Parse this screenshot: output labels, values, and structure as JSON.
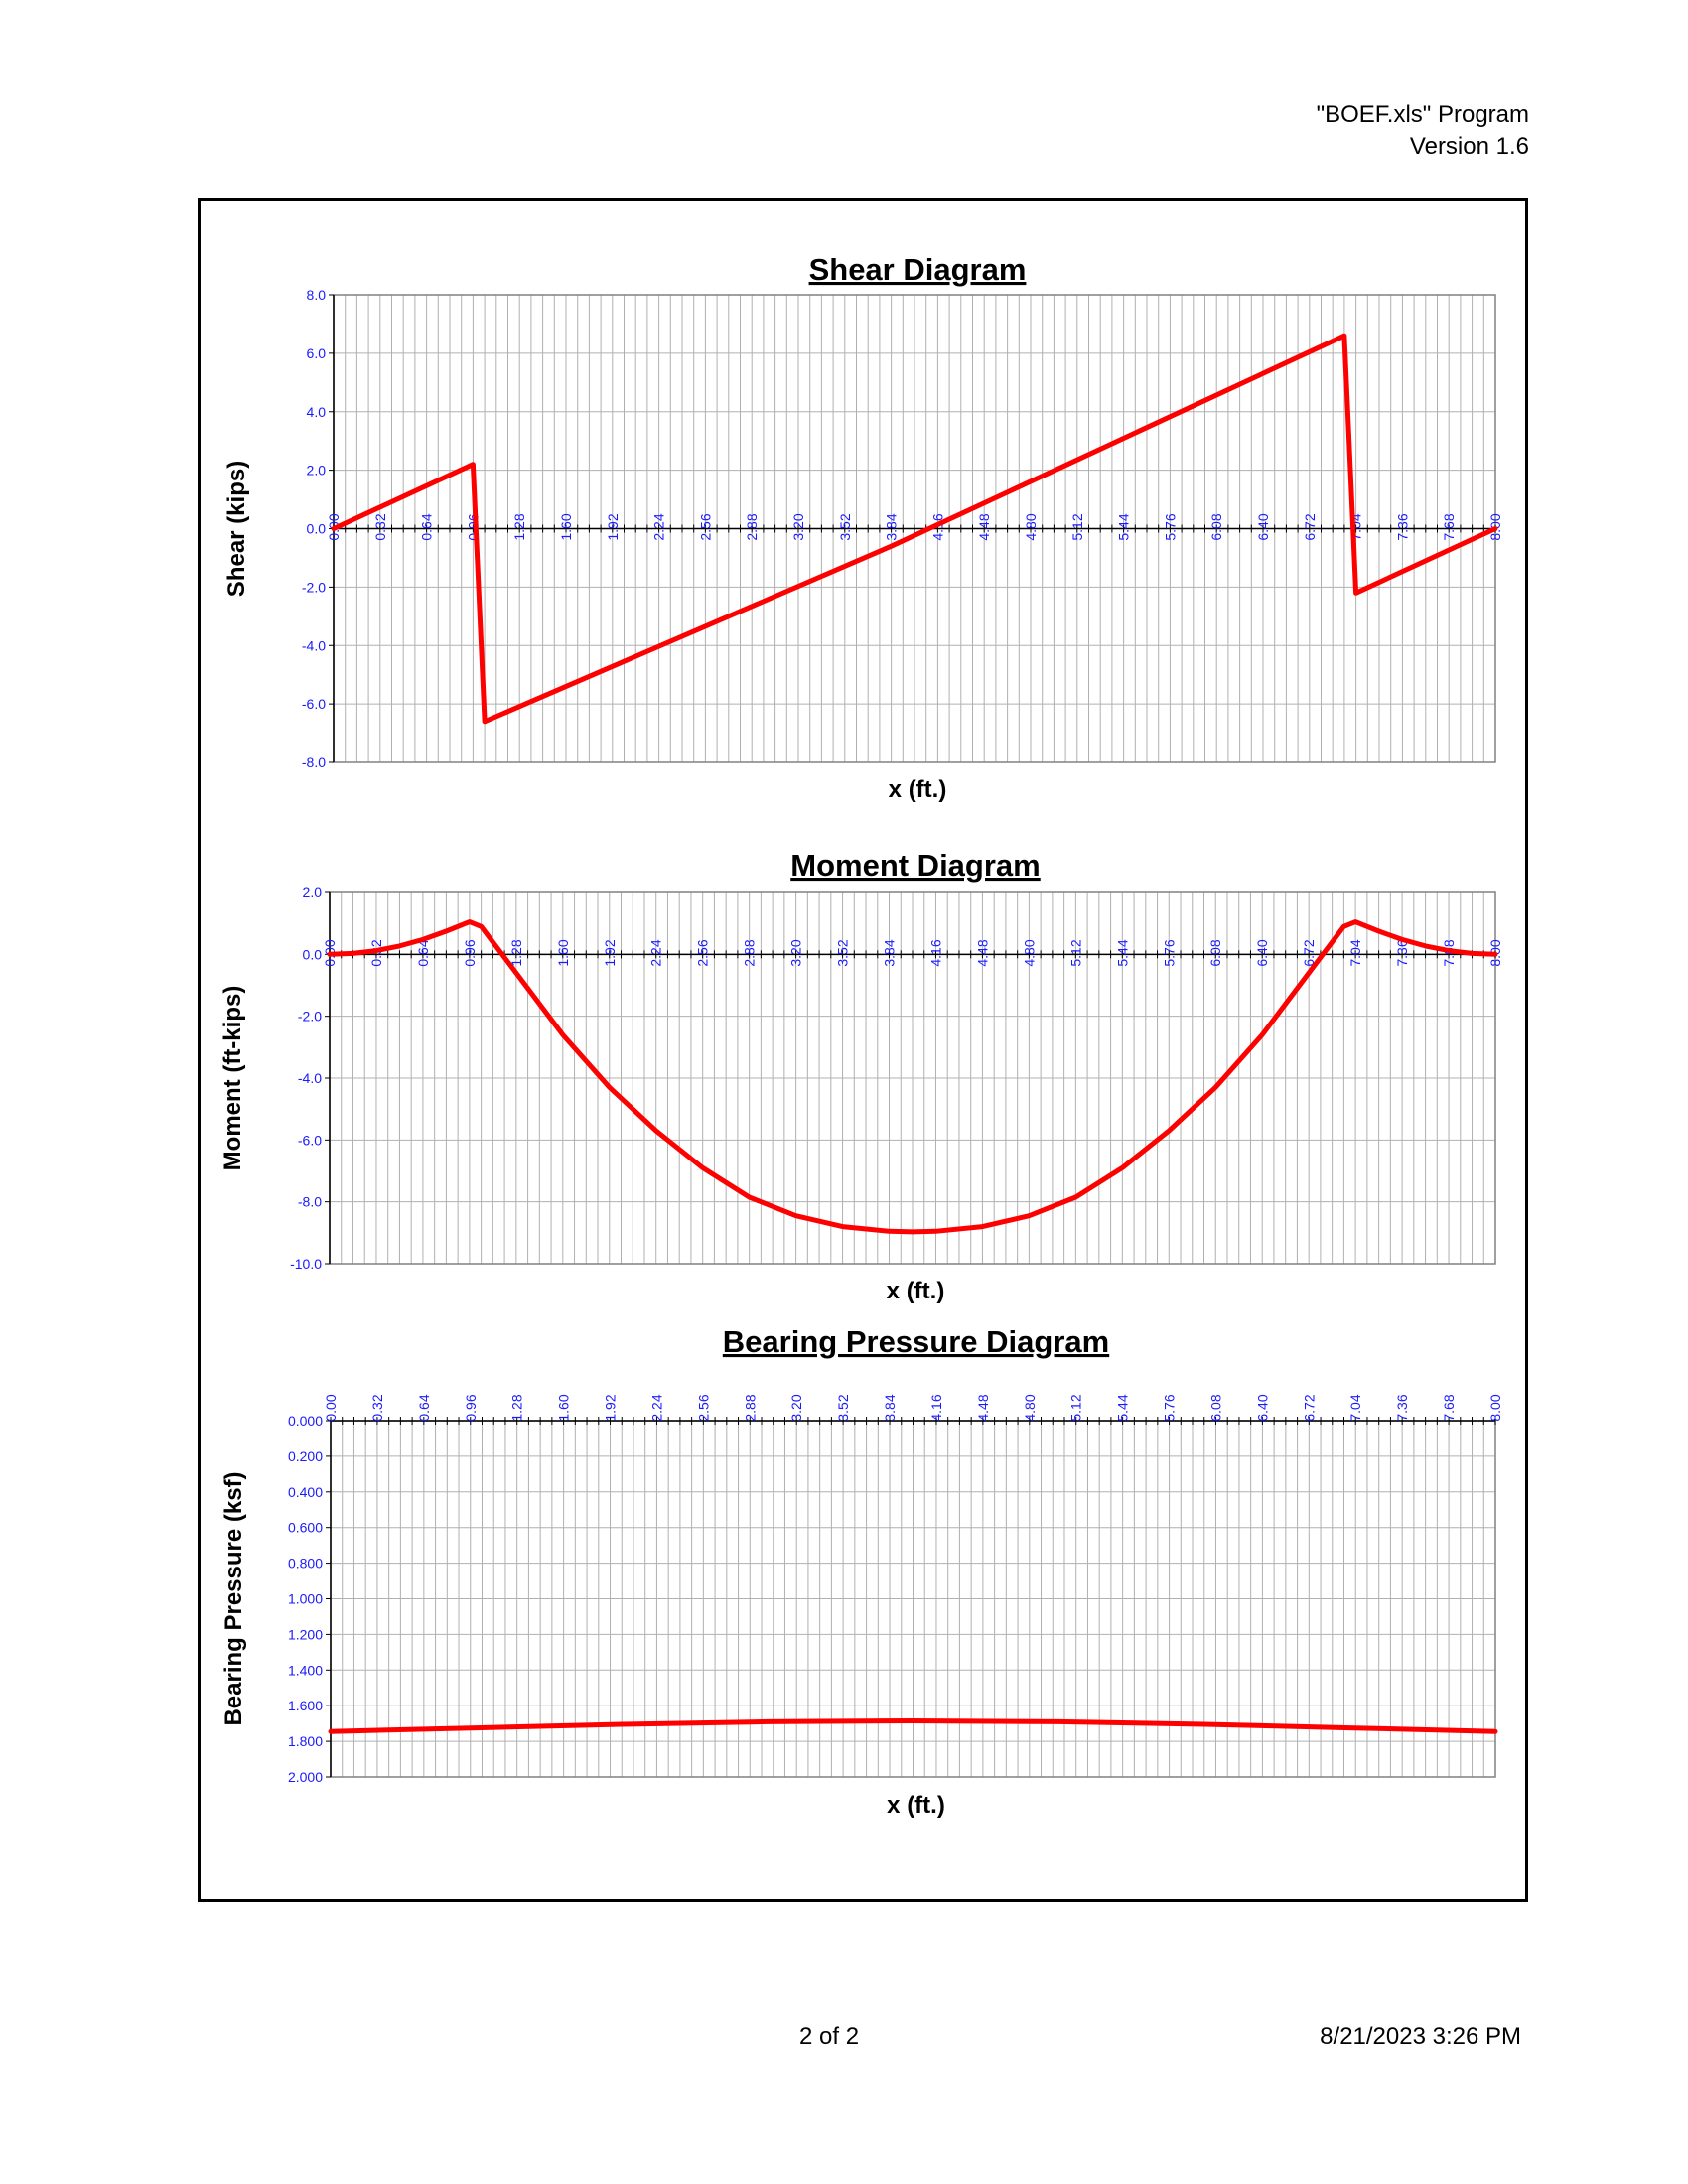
{
  "header": {
    "program": "\"BOEF.xls\" Program",
    "version": "Version 1.6"
  },
  "footer": {
    "page": "2 of 2",
    "datetime": "8/21/2023  3:26 PM"
  },
  "colors": {
    "series": "#ff0000",
    "tick_labels": "#1a1aff",
    "grid": "#b0b0b0"
  },
  "chart_data": [
    {
      "type": "line",
      "title": "Shear Diagram",
      "xlabel": "x (ft.)",
      "ylabel": "Shear (kips)",
      "xlim": [
        0,
        8
      ],
      "ylim": [
        -8,
        8
      ],
      "yticks": [
        "8.0",
        "6.0",
        "4.0",
        "2.0",
        "0.0",
        "-2.0",
        "-4.0",
        "-6.0",
        "-8.0"
      ],
      "xticks": [
        "0.00",
        "0.32",
        "0.64",
        "0.96",
        "1.28",
        "1.60",
        "1.92",
        "2.24",
        "2.56",
        "2.88",
        "3.20",
        "3.52",
        "3.84",
        "4.16",
        "4.48",
        "4.80",
        "5.12",
        "5.44",
        "5.76",
        "6.08",
        "6.40",
        "6.72",
        "7.04",
        "7.36",
        "7.68",
        "8.00"
      ],
      "grid": true,
      "series": [
        {
          "x": [
            0,
            0.96,
            1.04,
            3.84,
            6.96,
            7.04,
            8.0
          ],
          "y": [
            0,
            2.2,
            -6.6,
            -0.6,
            6.6,
            -2.2,
            0
          ]
        }
      ]
    },
    {
      "type": "line",
      "title": "Moment Diagram",
      "xlabel": "x (ft.)",
      "ylabel": "Moment (ft-kips)",
      "xlim": [
        0,
        8
      ],
      "ylim": [
        -10,
        2
      ],
      "yticks": [
        "2.0",
        "0.0",
        "-2.0",
        "-4.0",
        "-6.0",
        "-8.0",
        "-10.0"
      ],
      "xticks": [
        "0.00",
        "0.32",
        "0.64",
        "0.96",
        "1.28",
        "1.60",
        "1.92",
        "2.24",
        "2.56",
        "2.88",
        "3.20",
        "3.52",
        "3.84",
        "4.16",
        "4.48",
        "4.80",
        "5.12",
        "5.44",
        "5.76",
        "6.08",
        "6.40",
        "6.72",
        "7.04",
        "7.36",
        "7.68",
        "8.00"
      ],
      "grid": true,
      "series": [
        {
          "x": [
            0,
            0.16,
            0.32,
            0.48,
            0.64,
            0.8,
            0.96,
            1.04,
            1.28,
            1.6,
            1.92,
            2.24,
            2.56,
            2.88,
            3.2,
            3.52,
            3.84,
            4.0,
            4.16,
            4.48,
            4.8,
            5.12,
            5.44,
            5.76,
            6.08,
            6.4,
            6.72,
            6.96,
            7.04,
            7.2,
            7.36,
            7.52,
            7.68,
            7.84,
            8.0
          ],
          "y": [
            0,
            0.03,
            0.12,
            0.27,
            0.48,
            0.75,
            1.05,
            0.9,
            -0.6,
            -2.6,
            -4.3,
            -5.7,
            -6.9,
            -7.85,
            -8.45,
            -8.8,
            -8.95,
            -8.97,
            -8.95,
            -8.8,
            -8.45,
            -7.85,
            -6.9,
            -5.7,
            -4.3,
            -2.6,
            -0.6,
            0.9,
            1.05,
            0.75,
            0.48,
            0.27,
            0.12,
            0.03,
            0
          ]
        }
      ]
    },
    {
      "type": "line",
      "title": "Bearing Pressure Diagram",
      "xlabel": "x (ft.)",
      "ylabel": "Bearing Pressure (ksf)",
      "xlim": [
        0,
        8
      ],
      "ylim": [
        0,
        2
      ],
      "y_inverted": true,
      "x_axis_position": "top",
      "yticks": [
        "0.000",
        "0.200",
        "0.400",
        "0.600",
        "0.800",
        "1.000",
        "1.200",
        "1.400",
        "1.600",
        "1.800",
        "2.000"
      ],
      "xticks": [
        "0.00",
        "0.32",
        "0.64",
        "0.96",
        "1.28",
        "1.60",
        "1.92",
        "2.24",
        "2.56",
        "2.88",
        "3.20",
        "3.52",
        "3.84",
        "4.16",
        "4.48",
        "4.80",
        "5.12",
        "5.44",
        "5.76",
        "6.08",
        "6.40",
        "6.72",
        "7.04",
        "7.36",
        "7.68",
        "8.00"
      ],
      "grid": true,
      "series": [
        {
          "x": [
            0,
            1,
            2,
            3,
            4,
            5,
            6,
            7,
            8
          ],
          "y": [
            1.745,
            1.725,
            1.705,
            1.69,
            1.685,
            1.69,
            1.705,
            1.725,
            1.745
          ]
        }
      ]
    }
  ]
}
